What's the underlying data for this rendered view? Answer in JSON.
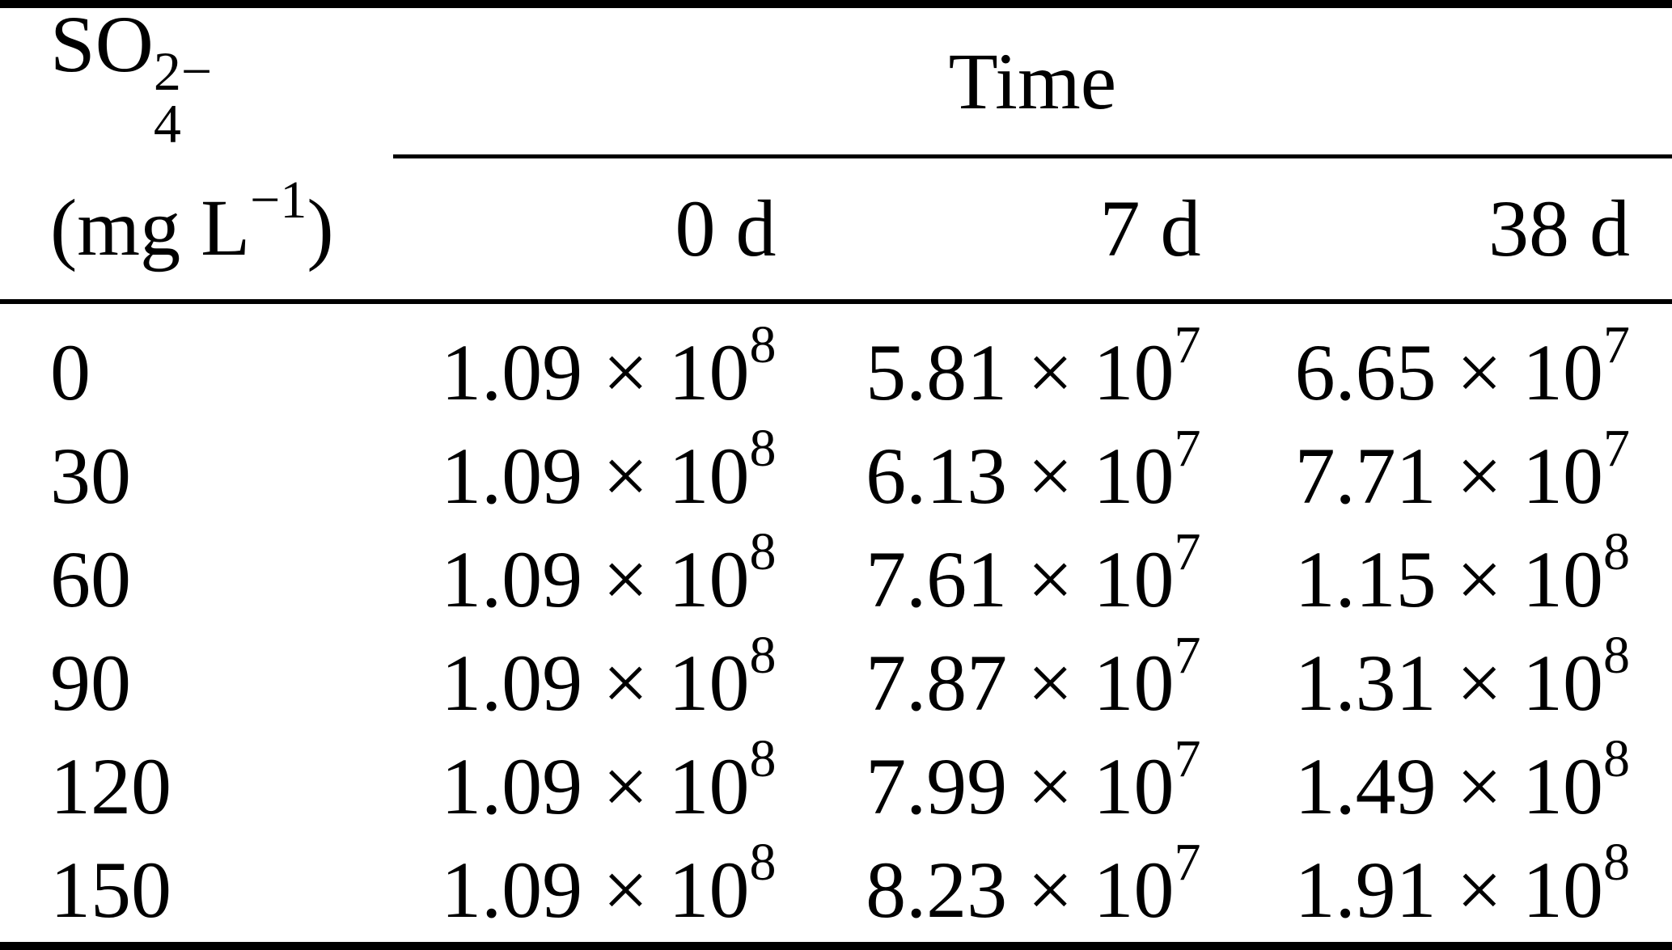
{
  "table": {
    "header": {
      "row_label": {
        "base": "SO",
        "charge": "2−",
        "subscript": "4"
      },
      "unit": {
        "pre": "(mg L",
        "exp": "−1",
        "post": ")"
      },
      "spanner": "Time",
      "columns": [
        "0 d",
        "7 d",
        "38 d"
      ]
    },
    "rows": [
      {
        "label": "0",
        "cells": [
          {
            "base": "1.09 × 10",
            "exp": "8"
          },
          {
            "base": "5.81 × 10",
            "exp": "7"
          },
          {
            "base": "6.65 × 10",
            "exp": "7"
          }
        ]
      },
      {
        "label": "30",
        "cells": [
          {
            "base": "1.09 × 10",
            "exp": "8"
          },
          {
            "base": "6.13 × 10",
            "exp": "7"
          },
          {
            "base": "7.71 × 10",
            "exp": "7"
          }
        ]
      },
      {
        "label": "60",
        "cells": [
          {
            "base": "1.09 × 10",
            "exp": "8"
          },
          {
            "base": "7.61 × 10",
            "exp": "7"
          },
          {
            "base": "1.15 × 10",
            "exp": "8"
          }
        ]
      },
      {
        "label": "90",
        "cells": [
          {
            "base": "1.09 × 10",
            "exp": "8"
          },
          {
            "base": "7.87 × 10",
            "exp": "7"
          },
          {
            "base": "1.31 × 10",
            "exp": "8"
          }
        ]
      },
      {
        "label": "120",
        "cells": [
          {
            "base": "1.09 × 10",
            "exp": "8"
          },
          {
            "base": "7.99 × 10",
            "exp": "7"
          },
          {
            "base": "1.49 × 10",
            "exp": "8"
          }
        ]
      },
      {
        "label": "150",
        "cells": [
          {
            "base": "1.09 × 10",
            "exp": "8"
          },
          {
            "base": "8.23 × 10",
            "exp": "7"
          },
          {
            "base": "1.91 × 10",
            "exp": "8"
          }
        ]
      }
    ]
  },
  "chart_data": {
    "type": "table",
    "row_header": "SO4 2− (mg L−1)",
    "column_group": "Time",
    "columns": [
      "0 d",
      "7 d",
      "38 d"
    ],
    "rows": [
      {
        "so4_mg_per_L": 0,
        "values": [
          109000000.0,
          58100000.0,
          66500000.0
        ]
      },
      {
        "so4_mg_per_L": 30,
        "values": [
          109000000.0,
          61300000.0,
          77100000.0
        ]
      },
      {
        "so4_mg_per_L": 60,
        "values": [
          109000000.0,
          76100000.0,
          115000000.0
        ]
      },
      {
        "so4_mg_per_L": 90,
        "values": [
          109000000.0,
          78700000.0,
          131000000.0
        ]
      },
      {
        "so4_mg_per_L": 120,
        "values": [
          109000000.0,
          79900000.0,
          149000000.0
        ]
      },
      {
        "so4_mg_per_L": 150,
        "values": [
          109000000.0,
          82300000.0,
          191000000.0
        ]
      }
    ],
    "colors": {
      "text": "#000000",
      "rules": "#000000",
      "background": "#ffffff"
    },
    "layout": {
      "top_rule": true,
      "mid_rule": true,
      "bottom_rule": true,
      "spanner_rule_columns": [
        1,
        2,
        3
      ]
    }
  }
}
